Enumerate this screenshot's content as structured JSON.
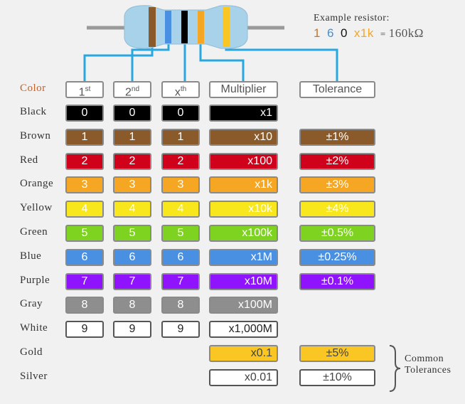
{
  "example": {
    "label": "Example resistor:",
    "tokens": [
      {
        "text": "1",
        "color": "#c8742a"
      },
      {
        "text": "6",
        "color": "#3f8fdc"
      },
      {
        "text": "0",
        "color": "#111111"
      },
      {
        "text": "x1k",
        "color": "#f5a623"
      }
    ],
    "equals": "=",
    "result": "160kΩ"
  },
  "headers": {
    "color": "Color",
    "first": {
      "base": "1",
      "sup": "st"
    },
    "second": {
      "base": "2",
      "sup": "nd"
    },
    "nth": {
      "base": "x",
      "sup": "th"
    },
    "multiplier": "Multiplier",
    "tolerance": "Tolerance"
  },
  "rows": [
    {
      "name": "Black",
      "digit": "0",
      "multiplier": "x1",
      "tolerance": null,
      "color": "#000000",
      "text": "#ffffff"
    },
    {
      "name": "Brown",
      "digit": "1",
      "multiplier": "x10",
      "tolerance": "±1%",
      "color": "#8b5a2b",
      "text": "#ffffff"
    },
    {
      "name": "Red",
      "digit": "2",
      "multiplier": "x100",
      "tolerance": "±2%",
      "color": "#d0021b",
      "text": "#ffffff"
    },
    {
      "name": "Orange",
      "digit": "3",
      "multiplier": "x1k",
      "tolerance": "±3%",
      "color": "#f5a623",
      "text": "#ffffff"
    },
    {
      "name": "Yellow",
      "digit": "4",
      "multiplier": "x10k",
      "tolerance": "±4%",
      "color": "#f8e71c",
      "text": "#ffffff"
    },
    {
      "name": "Green",
      "digit": "5",
      "multiplier": "x100k",
      "tolerance": "±0.5%",
      "color": "#7ed321",
      "text": "#ffffff"
    },
    {
      "name": "Blue",
      "digit": "6",
      "multiplier": "x1M",
      "tolerance": "±0.25%",
      "color": "#4a90e2",
      "text": "#ffffff"
    },
    {
      "name": "Purple",
      "digit": "7",
      "multiplier": "x10M",
      "tolerance": "±0.1%",
      "color": "#9013fe",
      "text": "#ffffff"
    },
    {
      "name": "Gray",
      "digit": "8",
      "multiplier": "x100M",
      "tolerance": null,
      "color": "#8e8e8e",
      "text": "#ffffff"
    },
    {
      "name": "White",
      "digit": "9",
      "multiplier": "x1,000M",
      "tolerance": null,
      "color": "#ffffff",
      "text": "#222222"
    },
    {
      "name": "Gold",
      "digit": null,
      "multiplier": "x0.1",
      "tolerance": "±5%",
      "color": "#f9c623",
      "text": "#444444"
    },
    {
      "name": "Silver",
      "digit": null,
      "multiplier": "x0.01",
      "tolerance": "±10%",
      "color": "#ffffff",
      "text": "#444444"
    }
  ],
  "note": [
    "Common",
    "Tolerances"
  ]
}
